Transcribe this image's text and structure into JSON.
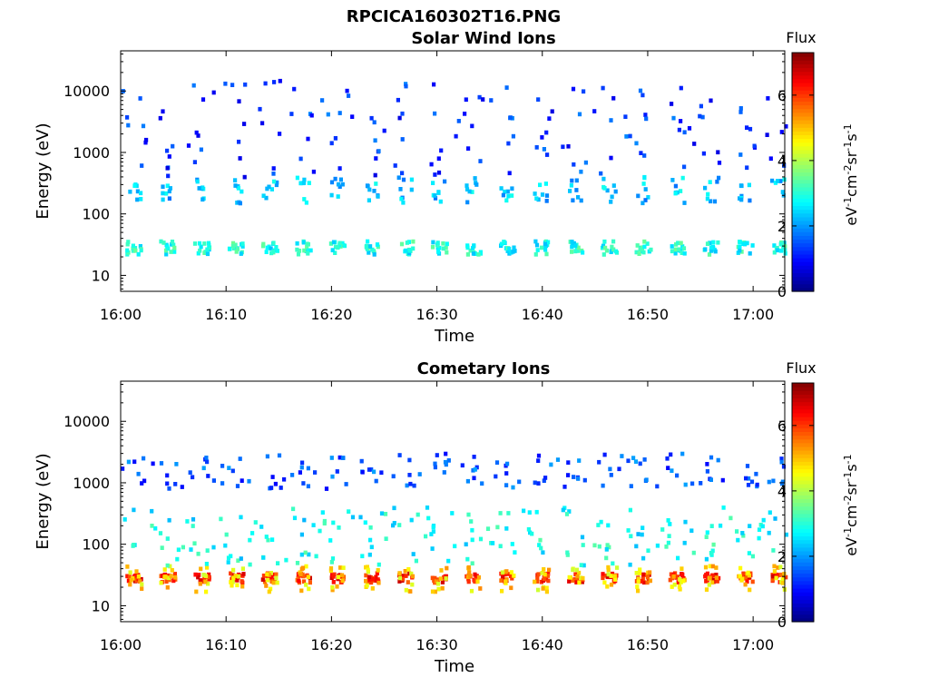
{
  "figure": {
    "title": "RPCICA160302T16.PNG"
  },
  "colormap": "jet",
  "chart_data": [
    {
      "type": "heatmap",
      "title": "Solar Wind Ions",
      "xlabel": "Time",
      "ylabel": "Energy (eV)",
      "yscale": "log",
      "xlim": [
        "16:00",
        "17:03"
      ],
      "ylim": [
        5.5,
        45000
      ],
      "x_ticks": [
        "16:00",
        "16:10",
        "16:20",
        "16:30",
        "16:40",
        "16:50",
        "17:00"
      ],
      "y_ticks": [
        "10",
        "100",
        "1000",
        "10000"
      ],
      "colorbar": {
        "label": "Flux",
        "unit": "eV-1cm-2sr-1s-1",
        "range": [
          0,
          7.3
        ],
        "ticks": [
          "0",
          "2",
          "4",
          "6"
        ]
      },
      "sweep_period_min": 3.22,
      "bands": [
        {
          "energy_ev": [
            22,
            36
          ],
          "level": 2.9,
          "description": "repeating low-energy blobs every sweep"
        },
        {
          "energy_ev": [
            150,
            400
          ],
          "level": 2.3,
          "description": "sparse streaks"
        },
        {
          "energy_ev": [
            400,
            15000
          ],
          "level": 1.3,
          "description": "scattered dots"
        }
      ]
    },
    {
      "type": "heatmap",
      "title": "Cometary Ions",
      "xlabel": "Time",
      "ylabel": "Energy (eV)",
      "yscale": "log",
      "xlim": [
        "16:00",
        "17:03"
      ],
      "ylim": [
        5.5,
        45000
      ],
      "x_ticks": [
        "16:00",
        "16:10",
        "16:20",
        "16:30",
        "16:40",
        "16:50",
        "17:00"
      ],
      "y_ticks": [
        "10",
        "100",
        "1000",
        "10000"
      ],
      "colorbar": {
        "label": "Flux",
        "unit": "eV-1cm-2sr-1s-1",
        "range": [
          0,
          7.3
        ],
        "ticks": [
          "0",
          "2",
          "4",
          "6"
        ]
      },
      "sweep_period_min": 3.22,
      "bands": [
        {
          "energy_ev": [
            24,
            34
          ],
          "level": 6.2,
          "description": "high-flux core every sweep"
        },
        {
          "energy_ev": [
            17,
            45
          ],
          "level": 4.8,
          "description": "core halo"
        },
        {
          "energy_ev": [
            45,
            400
          ],
          "level": 2.8,
          "description": "tilted arc rising with energy"
        },
        {
          "energy_ev": [
            800,
            3000
          ],
          "level": 1.5,
          "description": "sparse dots"
        }
      ]
    }
  ]
}
